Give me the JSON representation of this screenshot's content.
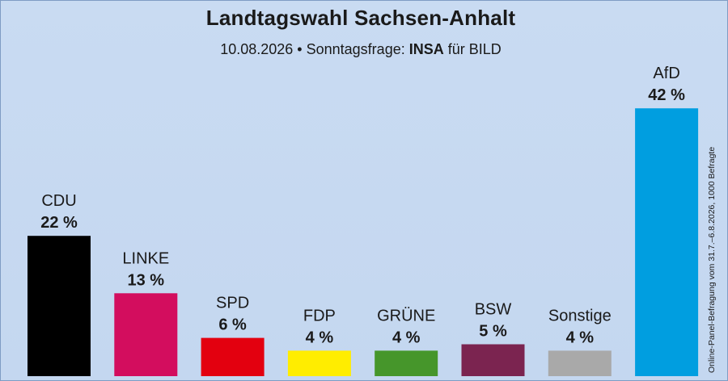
{
  "header": {
    "title": "Landtagswahl Sachsen-Anhalt",
    "subtitle_date": "10.08.2026",
    "subtitle_sep": "•",
    "subtitle_label": "Sonntagsfrage:",
    "subtitle_institute": "INSA",
    "subtitle_client": "für BILD"
  },
  "side_note": "Online-Panel-Befragung vom 31.7.–6.8.2026, 1000 Befragte",
  "chart_data": {
    "type": "bar",
    "title": "Landtagswahl Sachsen-Anhalt",
    "subtitle": "10.08.2026 • Sonntagsfrage: INSA für BILD",
    "xlabel": "",
    "ylabel": "",
    "unit": "%",
    "categories": [
      "CDU",
      "LINKE",
      "SPD",
      "FDP",
      "GRÜNE",
      "BSW",
      "Sonstige",
      "AfD"
    ],
    "values": [
      22,
      13,
      6,
      4,
      4,
      5,
      4,
      42
    ],
    "value_labels": [
      "22 %",
      "13 %",
      "6 %",
      "4 %",
      "4 %",
      "5 %",
      "4 %",
      "42 %"
    ],
    "colors": [
      "#000000",
      "#d30d5e",
      "#e3000f",
      "#ffed00",
      "#46962b",
      "#7b2450",
      "#a9a9a9",
      "#009ee0"
    ],
    "grid": false,
    "legend": "none"
  }
}
